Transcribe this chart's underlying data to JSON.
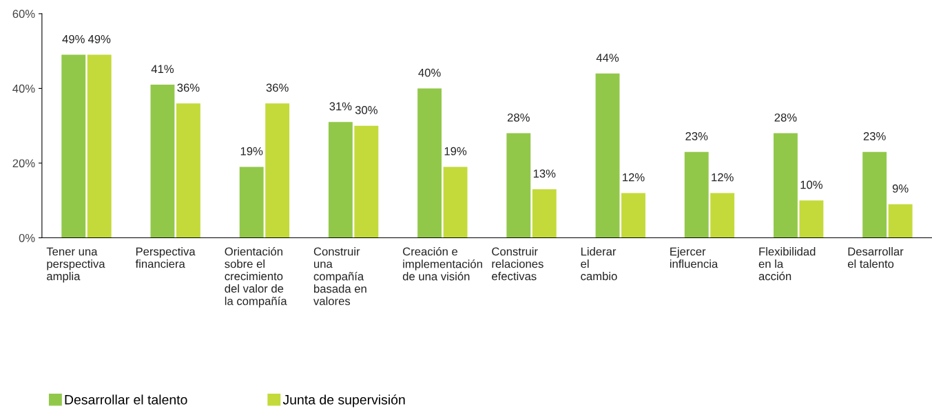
{
  "chart_data": {
    "type": "bar",
    "categories": [
      "Tener una\nperspectiva\namplia",
      "Perspectiva\nfinanciera",
      "Orientación\nsobre el\ncrecimiento\ndel valor de\nla compañía",
      "Construir\nuna\ncompañía\nbasada en\nvalores",
      "Creación e\nimplementación\nde una visión",
      "Construir\nrelaciones\nefectivas",
      "Liderar\nel\ncambio",
      "Ejercer\ninfluencia",
      "Flexibilidad\nen la\nacción",
      "Desarrollar\nel talento"
    ],
    "series": [
      {
        "name": "Desarrollar el talento",
        "color": "#92c84a",
        "values": [
          49,
          41,
          19,
          31,
          40,
          28,
          44,
          23,
          28,
          23
        ],
        "value_labels": [
          "49%",
          "41%",
          "19%",
          "31%",
          "40%",
          "28%",
          "44%",
          "23%",
          "28%",
          "23%"
        ]
      },
      {
        "name": "Junta de supervisión",
        "color": "#c4da3a",
        "values": [
          49,
          36,
          36,
          30,
          19,
          13,
          12,
          12,
          10,
          9
        ],
        "value_labels": [
          "49%",
          "36%",
          "36%",
          "30%",
          "19%",
          "13%",
          "12%",
          "12%",
          "10%",
          "9%"
        ]
      }
    ],
    "ylim": [
      0,
      60
    ],
    "yticks": [
      {
        "value": 0,
        "label": "0%"
      },
      {
        "value": 20,
        "label": "20%"
      },
      {
        "value": 40,
        "label": "40%"
      },
      {
        "value": 60,
        "label": "60%"
      }
    ],
    "grid": false,
    "legend": "bottom left"
  }
}
